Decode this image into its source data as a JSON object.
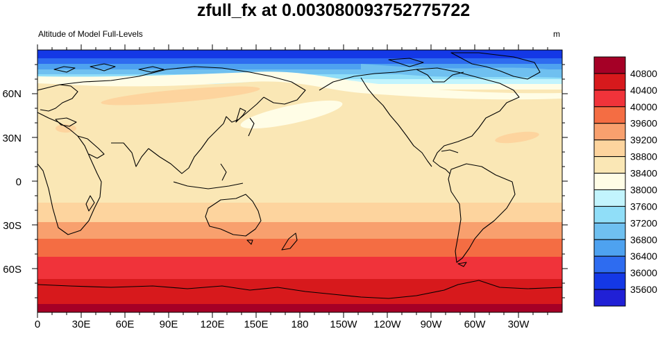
{
  "title": "zfull_fx at 0.003080093752775722",
  "left_subtitle": "Altitude of Model Full-Levels",
  "right_subtitle": "m",
  "map": {
    "projection": "cylindrical-equidistant",
    "center_longitude": 180,
    "lon_range": [
      0,
      360
    ],
    "lat_range": [
      -90,
      90
    ],
    "lon_tick_labels": [
      "0",
      "30E",
      "60E",
      "90E",
      "120E",
      "150E",
      "180",
      "150W",
      "120W",
      "90W",
      "60W",
      "30W"
    ],
    "lat_tick_labels": [
      "60N",
      "30N",
      "0",
      "30S",
      "60S"
    ],
    "lat_tick_values": [
      60,
      30,
      0,
      -30,
      -60
    ]
  },
  "colorbar": {
    "levels": [
      "40800",
      "40400",
      "40000",
      "39600",
      "39200",
      "38800",
      "38400",
      "38000",
      "37600",
      "37200",
      "36800",
      "36400",
      "36000",
      "35600"
    ],
    "colors": [
      "#a50026",
      "#d7191c",
      "#f0333a",
      "#f46d43",
      "#f8a06e",
      "#fdd49e",
      "#fae7b5",
      "#fffde6",
      "#c2f4fd",
      "#90def8",
      "#6fc0f0",
      "#4ea2f0",
      "#2e6cf0",
      "#1438e6",
      "#2020d6"
    ]
  }
}
